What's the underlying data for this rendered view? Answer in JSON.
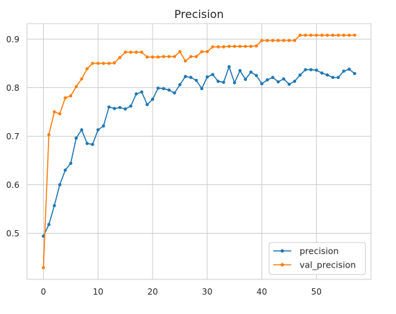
{
  "chart_data": {
    "type": "line",
    "title": "Precision",
    "xlabel": "",
    "ylabel": "",
    "xlim": [
      -3,
      60
    ],
    "ylim": [
      0.405,
      0.932
    ],
    "x_ticks": [
      0,
      10,
      20,
      30,
      40,
      50
    ],
    "y_ticks": [
      0.5,
      0.6,
      0.7,
      0.8,
      0.9
    ],
    "x_tick_labels": [
      "0",
      "10",
      "20",
      "30",
      "40",
      "50"
    ],
    "y_tick_labels": [
      "0.5",
      "0.6",
      "0.7",
      "0.8",
      "0.9"
    ],
    "grid": true,
    "legend_position": "lower-right",
    "x": [
      0,
      1,
      2,
      3,
      4,
      5,
      6,
      7,
      8,
      9,
      10,
      11,
      12,
      13,
      14,
      15,
      16,
      17,
      18,
      19,
      20,
      21,
      22,
      23,
      24,
      25,
      26,
      27,
      28,
      29,
      30,
      31,
      32,
      33,
      34,
      35,
      36,
      37,
      38,
      39,
      40,
      41,
      42,
      43,
      44,
      45,
      46,
      47,
      48,
      49,
      50,
      51,
      52,
      53,
      54,
      55,
      56,
      57
    ],
    "series": [
      {
        "name": "precision",
        "color": "#1f77b4",
        "values": [
          0.494,
          0.518,
          0.557,
          0.6,
          0.63,
          0.644,
          0.696,
          0.713,
          0.685,
          0.683,
          0.713,
          0.721,
          0.76,
          0.757,
          0.759,
          0.756,
          0.762,
          0.787,
          0.791,
          0.765,
          0.776,
          0.799,
          0.798,
          0.795,
          0.789,
          0.806,
          0.823,
          0.821,
          0.815,
          0.798,
          0.822,
          0.827,
          0.813,
          0.811,
          0.843,
          0.81,
          0.835,
          0.817,
          0.832,
          0.825,
          0.808,
          0.816,
          0.821,
          0.812,
          0.818,
          0.807,
          0.813,
          0.826,
          0.837,
          0.837,
          0.836,
          0.83,
          0.826,
          0.821,
          0.821,
          0.834,
          0.838,
          0.829
        ]
      },
      {
        "name": "val_precision",
        "color": "#ff7f0e",
        "values": [
          0.429,
          0.703,
          0.75,
          0.746,
          0.779,
          0.783,
          0.802,
          0.818,
          0.839,
          0.85,
          0.85,
          0.85,
          0.85,
          0.851,
          0.862,
          0.873,
          0.873,
          0.873,
          0.873,
          0.863,
          0.863,
          0.863,
          0.864,
          0.864,
          0.864,
          0.874,
          0.855,
          0.864,
          0.864,
          0.874,
          0.874,
          0.884,
          0.884,
          0.884,
          0.885,
          0.885,
          0.885,
          0.885,
          0.885,
          0.886,
          0.897,
          0.897,
          0.897,
          0.897,
          0.897,
          0.897,
          0.897,
          0.908,
          0.908,
          0.908,
          0.908,
          0.908,
          0.908,
          0.908,
          0.908,
          0.908,
          0.908,
          0.908
        ]
      }
    ]
  }
}
